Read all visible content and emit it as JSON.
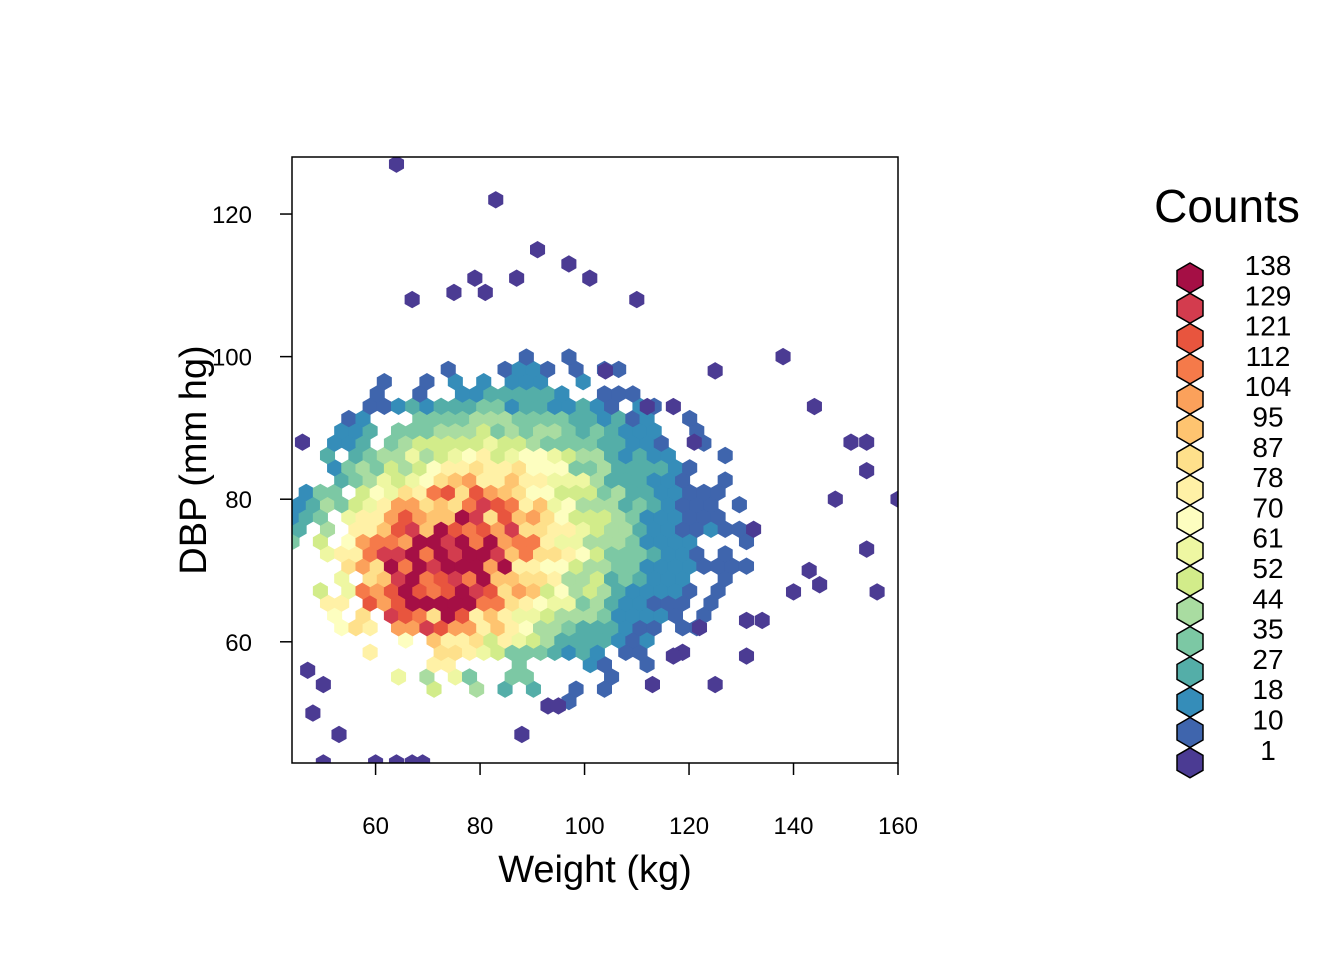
{
  "chart_data": {
    "type": "heatmap",
    "subtype": "hexbin",
    "xlabel": "Weight (kg)",
    "ylabel": "DBP (mm hg)",
    "xlim": [
      44,
      160
    ],
    "ylim": [
      43,
      128
    ],
    "x_ticks": [
      60,
      80,
      100,
      120,
      140,
      160
    ],
    "y_ticks": [
      60,
      80,
      100,
      120
    ],
    "grid": false,
    "legend": {
      "title": "Counts",
      "placement": "right",
      "bins": [
        {
          "label": "138",
          "color": "#a50f45"
        },
        {
          "label": "129",
          "color": "#d33c4e"
        },
        {
          "label": "121",
          "color": "#e8553e"
        },
        {
          "label": "112",
          "color": "#f57a4a"
        },
        {
          "label": "104",
          "color": "#fba15b"
        },
        {
          "label": "95",
          "color": "#fec470"
        },
        {
          "label": "87",
          "color": "#fee08b"
        },
        {
          "label": "78",
          "color": "#fff1a6"
        },
        {
          "label": "70",
          "color": "#fdfec0"
        },
        {
          "label": "61",
          "color": "#eef7a2"
        },
        {
          "label": "52",
          "color": "#d2ec8a"
        },
        {
          "label": "44",
          "color": "#a9dca1"
        },
        {
          "label": "35",
          "color": "#7cc8a4"
        },
        {
          "label": "27",
          "color": "#54aea8"
        },
        {
          "label": "18",
          "color": "#358db9"
        },
        {
          "label": "10",
          "color": "#3f65ad"
        },
        {
          "label": "1",
          "color": "#4b3b93"
        }
      ]
    },
    "density_peak": {
      "x": 72,
      "y": 70
    },
    "outliers": [
      [
        64,
        127
      ],
      [
        83,
        122
      ],
      [
        91,
        115
      ],
      [
        97,
        113
      ],
      [
        101,
        111
      ],
      [
        87,
        111
      ],
      [
        79,
        111
      ],
      [
        75,
        109
      ],
      [
        81,
        109
      ],
      [
        67,
        108
      ],
      [
        138,
        100
      ],
      [
        110,
        108
      ],
      [
        125,
        98
      ],
      [
        144,
        93
      ],
      [
        151,
        88
      ],
      [
        154,
        88
      ],
      [
        154,
        84
      ],
      [
        160,
        80
      ],
      [
        148,
        80
      ],
      [
        154,
        73
      ],
      [
        140,
        67
      ],
      [
        143,
        70
      ],
      [
        145,
        68
      ],
      [
        156,
        67
      ],
      [
        131,
        63
      ],
      [
        134,
        63
      ],
      [
        122,
        62
      ],
      [
        131,
        58
      ],
      [
        125,
        54
      ],
      [
        113,
        54
      ],
      [
        117,
        58
      ],
      [
        88,
        47
      ],
      [
        93,
        51
      ],
      [
        95,
        51
      ],
      [
        69,
        43
      ],
      [
        64,
        43
      ],
      [
        60,
        43
      ],
      [
        67,
        43
      ],
      [
        50,
        43
      ],
      [
        53,
        47
      ],
      [
        48,
        50
      ],
      [
        50,
        54
      ],
      [
        47,
        56
      ],
      [
        46,
        88
      ],
      [
        121,
        88
      ],
      [
        117,
        93
      ],
      [
        112,
        93
      ],
      [
        104,
        98
      ]
    ]
  }
}
